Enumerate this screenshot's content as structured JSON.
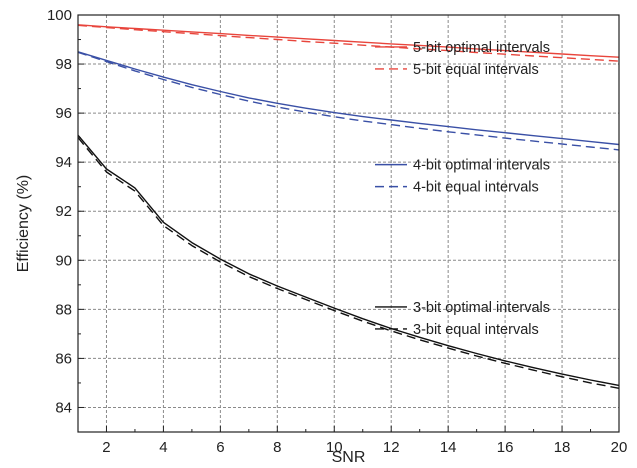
{
  "chart_data": {
    "type": "line",
    "title": "",
    "xlabel": "SNR",
    "ylabel": "Efficiency (%)",
    "xlim": [
      1,
      20
    ],
    "ylim": [
      83,
      100
    ],
    "xticks": [
      2,
      4,
      6,
      8,
      10,
      12,
      14,
      16,
      18,
      20
    ],
    "yticks": [
      84,
      86,
      88,
      90,
      92,
      94,
      96,
      98,
      100
    ],
    "grid": true,
    "x": [
      1,
      2,
      3,
      4,
      5,
      6,
      7,
      8,
      9,
      10,
      11,
      12,
      13,
      14,
      15,
      16,
      17,
      18,
      19,
      20
    ],
    "series": [
      {
        "name": "5-bit optimal intervals",
        "color": "#e8453c",
        "dash": "solid",
        "values": [
          99.6,
          99.52,
          99.45,
          99.38,
          99.31,
          99.24,
          99.17,
          99.1,
          99.03,
          98.96,
          98.89,
          98.82,
          98.76,
          98.69,
          98.62,
          98.55,
          98.48,
          98.41,
          98.34,
          98.28
        ]
      },
      {
        "name": "5-bit equal intervals",
        "color": "#e8453c",
        "dash": "dashed",
        "values": [
          99.58,
          99.49,
          99.4,
          99.32,
          99.24,
          99.16,
          99.08,
          99.0,
          98.92,
          98.85,
          98.77,
          98.69,
          98.62,
          98.55,
          98.47,
          98.4,
          98.33,
          98.26,
          98.19,
          98.12
        ]
      },
      {
        "name": "4-bit optimal intervals",
        "color": "#3a50a6",
        "dash": "solid",
        "values": [
          98.5,
          98.15,
          97.8,
          97.47,
          97.16,
          96.88,
          96.62,
          96.4,
          96.2,
          96.02,
          95.86,
          95.72,
          95.58,
          95.45,
          95.32,
          95.2,
          95.08,
          94.96,
          94.84,
          94.72
        ]
      },
      {
        "name": "4-bit equal intervals",
        "color": "#3a50a6",
        "dash": "dashed",
        "values": [
          98.48,
          98.1,
          97.72,
          97.37,
          97.05,
          96.76,
          96.49,
          96.25,
          96.04,
          95.85,
          95.68,
          95.53,
          95.38,
          95.24,
          95.11,
          94.98,
          94.86,
          94.74,
          94.62,
          94.5
        ]
      },
      {
        "name": "3-bit optimal intervals",
        "color": "#111111",
        "dash": "solid",
        "values": [
          95.1,
          93.72,
          92.95,
          91.55,
          90.72,
          90.05,
          89.45,
          88.95,
          88.5,
          88.05,
          87.62,
          87.22,
          86.86,
          86.52,
          86.2,
          85.9,
          85.62,
          85.36,
          85.12,
          84.9
        ]
      },
      {
        "name": "3-bit equal intervals",
        "color": "#111111",
        "dash": "dashed",
        "values": [
          95.0,
          93.6,
          92.82,
          91.42,
          90.6,
          89.93,
          89.34,
          88.85,
          88.4,
          87.95,
          87.52,
          87.12,
          86.76,
          86.42,
          86.1,
          85.8,
          85.52,
          85.25,
          85.0,
          84.78
        ]
      }
    ],
    "legend": {
      "placement": "inline-right",
      "groups": [
        {
          "entries": [
            0,
            1
          ],
          "anchor_y": 98.7
        },
        {
          "entries": [
            2,
            3
          ],
          "anchor_y": 93.9
        },
        {
          "entries": [
            4,
            5
          ],
          "anchor_y": 88.1
        }
      ]
    }
  }
}
